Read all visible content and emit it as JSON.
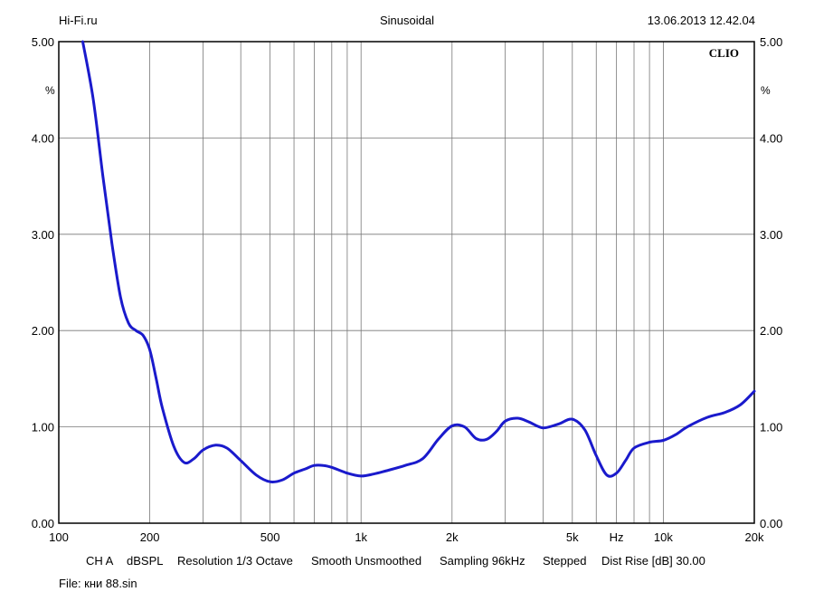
{
  "header": {
    "left": "Hi-Fi.ru",
    "center": "Sinusoidal",
    "right": "13.06.2013 12.42.04"
  },
  "chart_data": {
    "type": "line",
    "brand": "CLIO",
    "x_scale": "log",
    "xlim": [
      100,
      20000
    ],
    "ylim": [
      0,
      5
    ],
    "y_unit": "%",
    "y_ticks": [
      "0.00",
      "1.00",
      "2.00",
      "3.00",
      "4.00",
      "5.00"
    ],
    "x_ticks": [
      {
        "value": 100,
        "label": "100"
      },
      {
        "value": 200,
        "label": "200"
      },
      {
        "value": 500,
        "label": "500"
      },
      {
        "value": 1000,
        "label": "1k"
      },
      {
        "value": 2000,
        "label": "2k"
      },
      {
        "value": 5000,
        "label": "5k"
      },
      {
        "value": 7000,
        "label": "Hz"
      },
      {
        "value": 10000,
        "label": "10k"
      },
      {
        "value": 20000,
        "label": "20k"
      }
    ],
    "grid": true,
    "series": [
      {
        "color": "#1a1acc",
        "x": [
          120,
          130,
          140,
          150,
          160,
          170,
          180,
          190,
          200,
          210,
          220,
          240,
          260,
          280,
          300,
          330,
          360,
          400,
          450,
          500,
          550,
          600,
          650,
          700,
          750,
          800,
          900,
          1000,
          1100,
          1200,
          1400,
          1600,
          1800,
          2000,
          2200,
          2400,
          2600,
          2800,
          3000,
          3300,
          3600,
          4000,
          4500,
          5000,
          5500,
          6000,
          6500,
          7000,
          7500,
          8000,
          9000,
          10000,
          11000,
          12000,
          14000,
          16000,
          18000,
          20000
        ],
        "y": [
          5.0,
          4.4,
          3.6,
          2.9,
          2.35,
          2.08,
          2.0,
          1.95,
          1.8,
          1.5,
          1.2,
          0.8,
          0.63,
          0.67,
          0.76,
          0.81,
          0.78,
          0.65,
          0.5,
          0.43,
          0.45,
          0.52,
          0.56,
          0.6,
          0.6,
          0.58,
          0.52,
          0.49,
          0.51,
          0.54,
          0.6,
          0.67,
          0.87,
          1.01,
          1.0,
          0.88,
          0.87,
          0.95,
          1.06,
          1.09,
          1.05,
          0.99,
          1.03,
          1.08,
          0.97,
          0.7,
          0.5,
          0.52,
          0.65,
          0.78,
          0.84,
          0.86,
          0.92,
          1.0,
          1.1,
          1.15,
          1.23,
          1.37
        ]
      }
    ]
  },
  "footer": {
    "ch": "CH A",
    "unit": "dBSPL",
    "resolution": "Resolution 1/3 Octave",
    "smooth": "Smooth Unsmoothed",
    "sampling": "Sampling 96kHz",
    "stepped": "Stepped",
    "dist_rise": "Dist Rise [dB] 30.00",
    "file": "File: кни 88.sin"
  }
}
